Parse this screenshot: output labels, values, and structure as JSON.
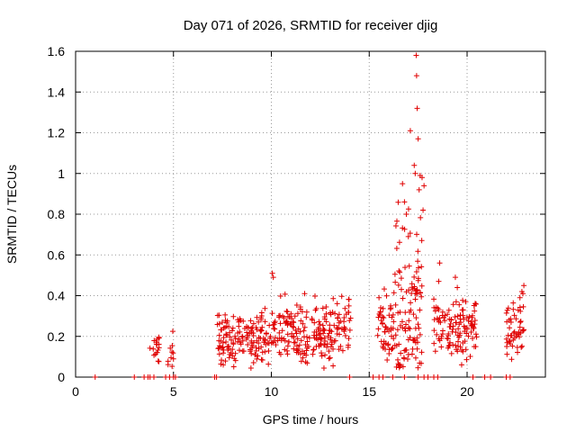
{
  "chart_data": {
    "type": "scatter",
    "title": "Day 071 of 2026, SRMTID for receiver djig",
    "xlabel": "GPS time / hours",
    "ylabel": "SRMTID / TECUs",
    "xlim": [
      0,
      24
    ],
    "ylim": [
      0,
      1.6
    ],
    "xticks": [
      0,
      5,
      10,
      15,
      20
    ],
    "yticks": [
      0,
      0.2,
      0.4,
      0.6,
      0.8,
      1,
      1.2,
      1.4,
      1.6
    ],
    "ytick_labels": [
      "0",
      "0.2",
      "0.4",
      "0.6",
      "0.8",
      "1",
      "1.2",
      "1.4",
      "1.6"
    ],
    "grid": true,
    "marker": "+",
    "color": "#e00000",
    "zero_points_hours": [
      1.0,
      3.0,
      3.5,
      3.7,
      3.8,
      4.0,
      4.6,
      4.8,
      5.0,
      5.1,
      7.1,
      7.2,
      14.0,
      15.2,
      15.5,
      15.7,
      16.2,
      16.8,
      17.5,
      17.8,
      18.0,
      18.3,
      18.5,
      20.3,
      20.9,
      21.2,
      22.0,
      22.2
    ],
    "clusters": [
      {
        "start": 3.8,
        "end": 4.3,
        "n": 18,
        "base": 0.15,
        "spread": 0.05
      },
      {
        "start": 4.7,
        "end": 5.0,
        "n": 10,
        "base": 0.13,
        "spread": 0.04
      },
      {
        "start": 7.2,
        "end": 10.0,
        "n": 150,
        "base": 0.18,
        "spread": 0.06
      },
      {
        "start": 10.0,
        "end": 14.1,
        "n": 220,
        "base": 0.22,
        "spread": 0.07
      },
      {
        "start": 15.4,
        "end": 16.3,
        "n": 50,
        "base": 0.22,
        "spread": 0.09
      },
      {
        "start": 16.3,
        "end": 17.7,
        "n": 110,
        "base": 0.35,
        "spread": 0.22
      },
      {
        "start": 18.3,
        "end": 20.5,
        "n": 120,
        "base": 0.24,
        "spread": 0.07
      },
      {
        "start": 22.0,
        "end": 22.9,
        "n": 50,
        "base": 0.24,
        "spread": 0.08
      }
    ],
    "peaks": [
      {
        "x": 10.05,
        "y": 0.51
      },
      {
        "x": 10.1,
        "y": 0.49
      },
      {
        "x": 11.7,
        "y": 0.41
      },
      {
        "x": 15.5,
        "y": 0.39
      },
      {
        "x": 16.7,
        "y": 0.95
      },
      {
        "x": 16.8,
        "y": 0.86
      },
      {
        "x": 16.9,
        "y": 0.8
      },
      {
        "x": 17.0,
        "y": 0.69
      },
      {
        "x": 17.1,
        "y": 1.21
      },
      {
        "x": 17.3,
        "y": 1.04
      },
      {
        "x": 17.35,
        "y": 1.0
      },
      {
        "x": 17.4,
        "y": 1.58
      },
      {
        "x": 17.42,
        "y": 1.48
      },
      {
        "x": 17.45,
        "y": 1.32
      },
      {
        "x": 17.5,
        "y": 1.17
      },
      {
        "x": 17.55,
        "y": 0.92
      },
      {
        "x": 17.6,
        "y": 0.99
      },
      {
        "x": 17.7,
        "y": 0.98
      },
      {
        "x": 17.75,
        "y": 0.82
      },
      {
        "x": 17.8,
        "y": 0.94
      },
      {
        "x": 18.6,
        "y": 0.56
      },
      {
        "x": 18.55,
        "y": 0.47
      },
      {
        "x": 19.4,
        "y": 0.49
      },
      {
        "x": 19.5,
        "y": 0.44
      },
      {
        "x": 22.9,
        "y": 0.45
      },
      {
        "x": 22.8,
        "y": 0.42
      },
      {
        "x": 22.7,
        "y": 0.39
      }
    ]
  }
}
